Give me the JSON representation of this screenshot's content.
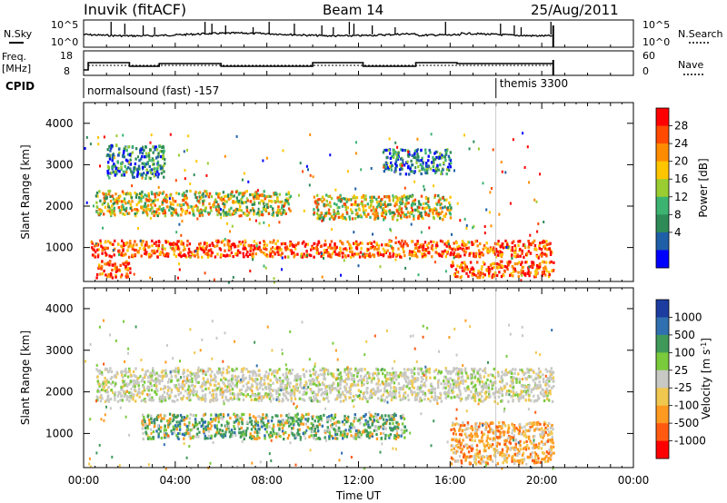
{
  "header": {
    "station": "Inuvik (fitACF)",
    "beam": "Beam 14",
    "date": "25/Aug/2011"
  },
  "time_axis": {
    "label": "Time UT",
    "ticks": [
      "00:00",
      "04:00",
      "08:00",
      "12:00",
      "16:00",
      "20:00",
      "00:00"
    ],
    "range_hours": [
      0,
      24
    ]
  },
  "nsky_panel": {
    "left_label": "N.Sky",
    "right_label": "N.Search",
    "left_ticks": [
      "10^5",
      "10^0"
    ],
    "right_ticks": [
      "10^5",
      "10^0"
    ]
  },
  "freq_panel": {
    "left_label_1": "Freq.",
    "left_label_2": "[MHz]",
    "left_ticks": [
      "18",
      "8"
    ],
    "right_label": "Nave",
    "right_ticks": [
      "60",
      "0"
    ]
  },
  "cpid": {
    "label": "CPID",
    "entries": [
      {
        "text": "normalsound (fast) -157",
        "start_hour": 0
      },
      {
        "text": "themis 3300",
        "start_hour": 18.0
      }
    ]
  },
  "power_panel": {
    "ylabel": "Slant Range [km]",
    "yticks": [
      "4000",
      "3000",
      "2000",
      "1000"
    ],
    "colorbar": {
      "label": "Power [dB]",
      "ticks": [
        "28",
        "24",
        "20",
        "16",
        "12",
        "8",
        "4"
      ],
      "colors": [
        "#ff0000",
        "#ff4a00",
        "#ff8c00",
        "#ffc600",
        "#9acd32",
        "#3cb371",
        "#2e8b57",
        "#1f5fa8",
        "#0000ff"
      ]
    }
  },
  "velocity_panel": {
    "ylabel": "Slant Range [km]",
    "yticks": [
      "4000",
      "3000",
      "2000",
      "1000"
    ],
    "colorbar": {
      "label_main": "Velocity",
      "label_unit": "[m s",
      "label_exp": "-1",
      "label_close": "]",
      "ticks": [
        "1000",
        "500",
        "100",
        "25",
        "-25",
        "-100",
        "-500",
        "-1000"
      ],
      "colors": [
        "#1c3ca0",
        "#3070b0",
        "#3f9a5a",
        "#7acb3c",
        "#c8c8c4",
        "#f0c850",
        "#ff9a20",
        "#ff5a10",
        "#ff0000"
      ]
    }
  },
  "chart_data": {
    "type": "heatmap",
    "x": "Time UT (hours)",
    "y": "Slant Range [km]",
    "xlim": [
      0,
      24
    ],
    "ylim": [
      180,
      4500
    ],
    "data_end_hour": 20.5,
    "power_bands": [
      {
        "t0": 0.3,
        "t1": 20.5,
        "r0": 800,
        "r1": 1200,
        "level": "high"
      },
      {
        "t0": 0.5,
        "t1": 2.0,
        "r0": 300,
        "r1": 700,
        "level": "high"
      },
      {
        "t0": 0.5,
        "t1": 9.0,
        "r0": 1800,
        "r1": 2400,
        "level": "medium"
      },
      {
        "t0": 10.0,
        "t1": 16.0,
        "r0": 1700,
        "r1": 2300,
        "level": "medium"
      },
      {
        "t0": 16.0,
        "t1": 20.5,
        "r0": 300,
        "r1": 700,
        "level": "high"
      },
      {
        "t0": 1.0,
        "t1": 3.5,
        "r0": 2700,
        "r1": 3500,
        "level": "low"
      },
      {
        "t0": 13.0,
        "t1": 16.0,
        "r0": 2800,
        "r1": 3400,
        "level": "low"
      }
    ],
    "velocity_bands": [
      {
        "t0": 2.5,
        "t1": 14.0,
        "r0": 900,
        "r1": 1500,
        "level": "positive"
      },
      {
        "t0": 0.5,
        "t1": 20.5,
        "r0": 1800,
        "r1": 2600,
        "level": "near-zero"
      },
      {
        "t0": 16.0,
        "t1": 20.5,
        "r0": 300,
        "r1": 1300,
        "level": "negative"
      }
    ]
  }
}
